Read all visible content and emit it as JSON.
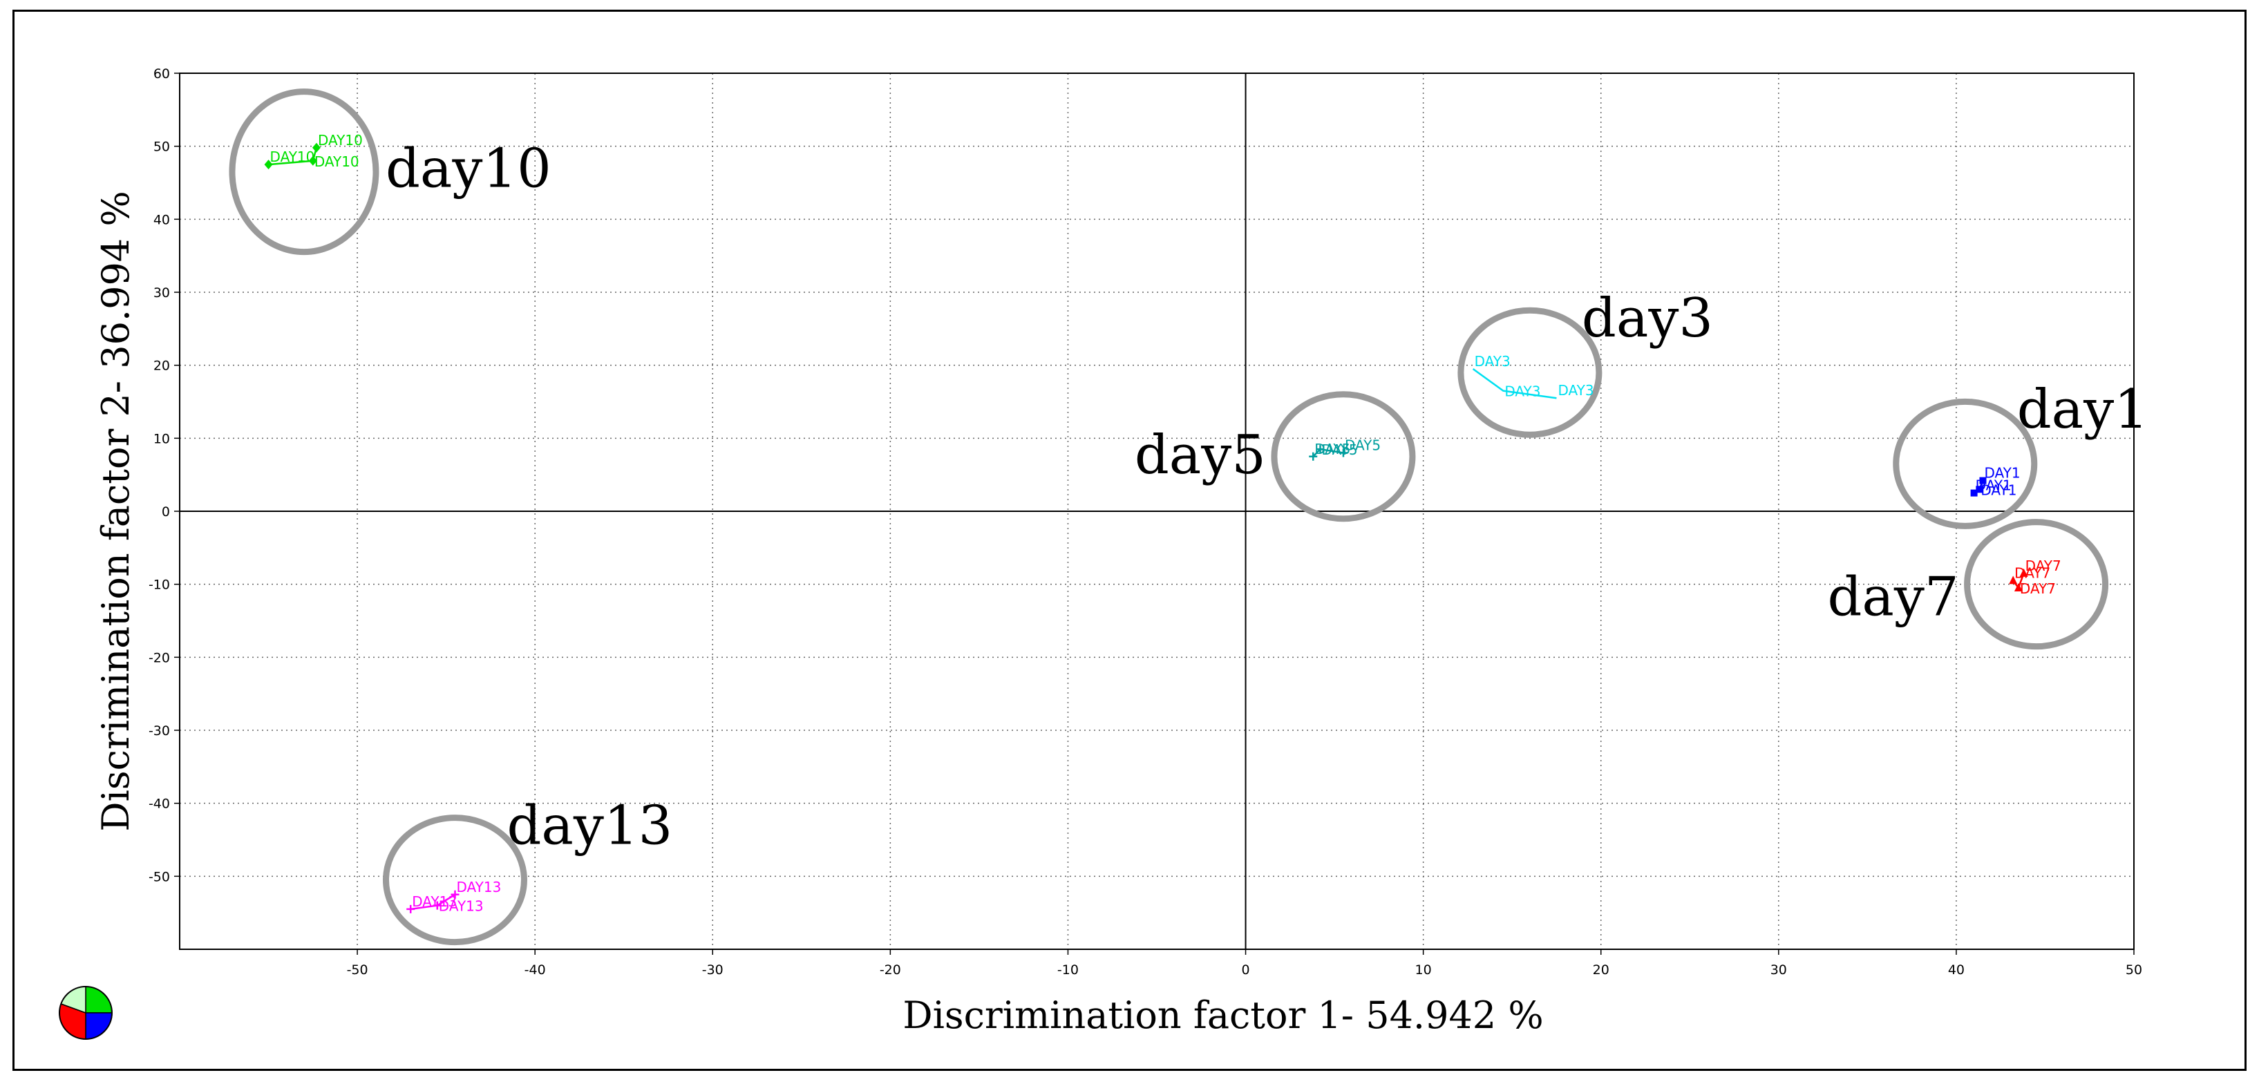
{
  "chart_data": {
    "type": "scatter",
    "xlabel": "Discrimination factor 1- 54.942 %",
    "ylabel": "Discrimination factor 2- 36.994 %",
    "xlim": [
      -60,
      50
    ],
    "ylim": [
      -60,
      60
    ],
    "xticks": [
      -50,
      -40,
      -30,
      -20,
      -10,
      0,
      10,
      20,
      30,
      40,
      50
    ],
    "yticks": [
      -50,
      -40,
      -30,
      -20,
      -10,
      0,
      10,
      20,
      30,
      40,
      50,
      60
    ],
    "grid": true,
    "series": [
      {
        "name": "DAY1",
        "color": "#0000ff",
        "marker": "square",
        "points": [
          [
            41.0,
            2.5
          ],
          [
            41.3,
            3.0
          ],
          [
            41.5,
            4.2
          ]
        ],
        "labels": [
          "DAY1",
          "DAY1",
          "DAY1"
        ]
      },
      {
        "name": "DAY3",
        "color": "#00e0f0",
        "marker": "none",
        "points": [
          [
            12.8,
            19.5
          ],
          [
            14.5,
            16.5
          ],
          [
            17.5,
            15.5
          ]
        ],
        "labels": [
          "DAY3",
          "DAY3",
          "DAY3"
        ]
      },
      {
        "name": "DAY5",
        "color": "#009e9e",
        "marker": "plus",
        "points": [
          [
            3.8,
            7.5
          ],
          [
            4.2,
            8.5
          ],
          [
            5.5,
            8.0
          ]
        ],
        "labels": [
          "DAY5",
          "DAY5",
          "DAY5"
        ]
      },
      {
        "name": "DAY7",
        "color": "#ff0000",
        "marker": "triangle",
        "points": [
          [
            43.2,
            -9.5
          ],
          [
            43.5,
            -10.5
          ],
          [
            43.8,
            -8.5
          ]
        ],
        "labels": [
          "DAY7",
          "DAY7",
          "DAY7"
        ]
      },
      {
        "name": "DAY10",
        "color": "#00e000",
        "marker": "diamond",
        "points": [
          [
            -55.0,
            47.5
          ],
          [
            -52.5,
            48.0
          ],
          [
            -52.3,
            49.8
          ]
        ],
        "labels": [
          "DAY10",
          "DAY10",
          "DAY10"
        ]
      },
      {
        "name": "DAY13",
        "color": "#ff00ff",
        "marker": "plus",
        "points": [
          [
            -47.0,
            -54.5
          ],
          [
            -45.5,
            -54.0
          ],
          [
            -44.5,
            -52.5
          ]
        ],
        "labels": [
          "DAY13",
          "DAY13",
          "DAY13"
        ]
      }
    ],
    "annotations": [
      {
        "text": "day10",
        "center": [
          -53,
          46.5
        ],
        "label_side": "right"
      },
      {
        "text": "day3",
        "center": [
          16,
          19
        ],
        "label_side": "upper-right"
      },
      {
        "text": "day5",
        "center": [
          5.5,
          7.5
        ],
        "label_side": "left"
      },
      {
        "text": "day1",
        "center": [
          40.5,
          6.5
        ],
        "label_side": "upper-right"
      },
      {
        "text": "day7",
        "center": [
          44.5,
          -10
        ],
        "label_side": "lower-left"
      },
      {
        "text": "day13",
        "center": [
          -44.5,
          -50.5
        ],
        "label_side": "upper-right"
      }
    ]
  },
  "colors": {
    "ellipse": "#9a9a9a",
    "grid": "#666666",
    "logo": [
      "#00e000",
      "#0000ff",
      "#ff0000",
      "#c8ffc8"
    ]
  },
  "icons": {
    "logo": "pie-logo-icon"
  }
}
